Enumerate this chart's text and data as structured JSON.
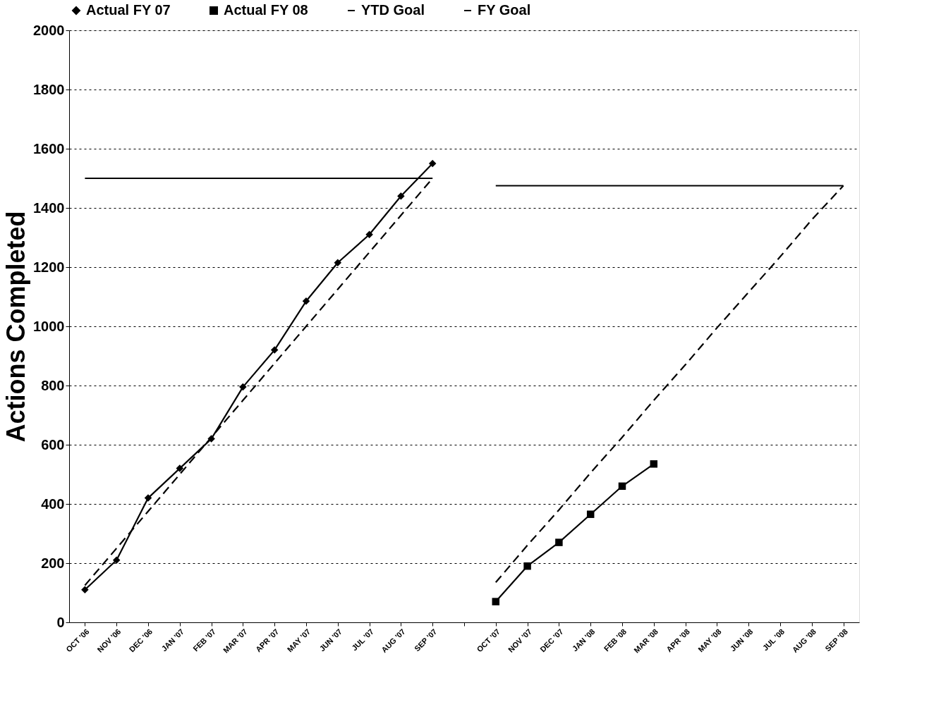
{
  "chart_data": {
    "type": "line",
    "ylabel": "Actions Completed",
    "categories": [
      "OCT '06",
      "NOV '06",
      "DEC '06",
      "JAN '07",
      "FEB '07",
      "MAR '07",
      "APR '07",
      "MAY '07",
      "JUN '07",
      "JUL '07",
      "AUG '07",
      "SEP '07",
      null,
      "OCT '07",
      "NOV '07",
      "DEC '07",
      "JAN '08",
      "FEB '08",
      "MAR '08",
      "APR '08",
      "MAY '08",
      "JUN '08",
      "JUL '08",
      "AUG '08",
      "SEP '08"
    ],
    "series": [
      {
        "name": "Actual FY 07",
        "color": "#000000",
        "marker": "diamond",
        "line_style": "solid",
        "values": [
          110,
          210,
          420,
          520,
          620,
          795,
          920,
          1085,
          1215,
          1310,
          1440,
          1550,
          null,
          null,
          null,
          null,
          null,
          null,
          null,
          null,
          null,
          null,
          null,
          null,
          null
        ]
      },
      {
        "name": "Actual FY 08",
        "color": "#000000",
        "marker": "square",
        "line_style": "solid",
        "values": [
          null,
          null,
          null,
          null,
          null,
          null,
          null,
          null,
          null,
          null,
          null,
          null,
          null,
          70,
          190,
          270,
          365,
          460,
          535,
          null,
          null,
          null,
          null,
          null,
          null
        ]
      },
      {
        "name": "YTD Goal",
        "color": "#000000",
        "marker": "none",
        "line_style": "dashed",
        "values": [
          125,
          250,
          375,
          500,
          625,
          750,
          875,
          1000,
          1125,
          1250,
          1375,
          1500,
          null,
          135,
          260,
          380,
          505,
          625,
          750,
          870,
          995,
          1115,
          1235,
          1360,
          1475
        ]
      },
      {
        "name": "FY Goal",
        "color": "#000000",
        "marker": "none",
        "line_style": "solid",
        "values": [
          1500,
          1500,
          1500,
          1500,
          1500,
          1500,
          1500,
          1500,
          1500,
          1500,
          1500,
          1500,
          null,
          1475,
          1475,
          1475,
          1475,
          1475,
          1475,
          1475,
          1475,
          1475,
          1475,
          1475,
          1475
        ]
      }
    ],
    "ylim": [
      0,
      2000
    ],
    "yticks": [
      0,
      200,
      400,
      600,
      800,
      1000,
      1200,
      1400,
      1600,
      1800,
      2000
    ],
    "grid": "y",
    "legend": "top"
  }
}
